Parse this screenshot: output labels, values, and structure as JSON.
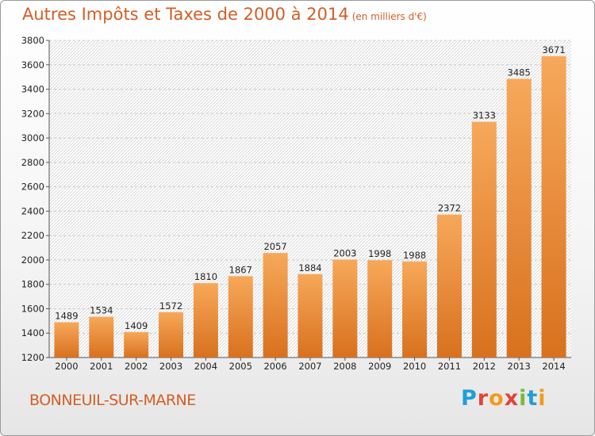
{
  "title": "Autres Impôts et Taxes de 2000 à 2014",
  "subtitle": "(en milliers d'€)",
  "location": "BONNEUIL-SUR-MARNE",
  "logo": {
    "letters": [
      "P",
      "r",
      "o",
      "x",
      "i",
      "t",
      "i"
    ],
    "colors": [
      "#1f9fd8",
      "#e2433a",
      "#f39a1d",
      "#e2433a",
      "#7bb83a",
      "#1f9fd8",
      "#f39a1d"
    ]
  },
  "colors": {
    "bar_light": "#f7a85a",
    "bar_dark": "#d8711e",
    "title": "#d45e25"
  },
  "chart_data": {
    "type": "bar",
    "categories": [
      "2000",
      "2001",
      "2002",
      "2003",
      "2004",
      "2005",
      "2006",
      "2007",
      "2008",
      "2009",
      "2010",
      "2011",
      "2012",
      "2013",
      "2014"
    ],
    "values": [
      1489,
      1534,
      1409,
      1572,
      1810,
      1867,
      2057,
      1884,
      2003,
      1998,
      1988,
      2372,
      3133,
      3485,
      3671
    ],
    "ylim": [
      1200,
      3800
    ],
    "yticks": [
      1200,
      1400,
      1600,
      1800,
      2000,
      2200,
      2400,
      2600,
      2800,
      3000,
      3200,
      3400,
      3600,
      3800
    ],
    "grid": true,
    "legend": "none"
  }
}
